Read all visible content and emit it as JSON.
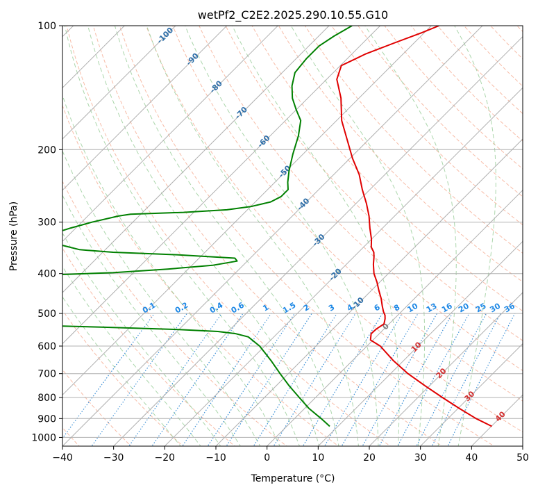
{
  "chart_data": {
    "type": "line",
    "subtype": "skew-t log-p diagram",
    "title": "wetPf2_C2E2.2025.290.10.55.G10",
    "xlabel": "Temperature (°C)",
    "ylabel": "Pressure (hPa)",
    "xlim": [
      -40,
      50
    ],
    "ylim": [
      1050,
      100
    ],
    "x_ticks": [
      -40,
      -30,
      -20,
      -10,
      0,
      10,
      20,
      30,
      40,
      50
    ],
    "y_ticks": [
      100,
      200,
      300,
      400,
      500,
      600,
      700,
      800,
      900,
      1000
    ],
    "x_tick_labels": [
      "−40",
      "−30",
      "−20",
      "−10",
      "0",
      "10",
      "20",
      "30",
      "40",
      "50"
    ],
    "y_tick_labels": [
      "100",
      "200",
      "300",
      "400",
      "500",
      "600",
      "700",
      "800",
      "900",
      "1000"
    ],
    "isotherm_labels": [
      {
        "t": -100,
        "text": "-100"
      },
      {
        "t": -90,
        "text": "-90"
      },
      {
        "t": -80,
        "text": "-80"
      },
      {
        "t": -70,
        "text": "-70"
      },
      {
        "t": -60,
        "text": "-60"
      },
      {
        "t": -50,
        "text": "-50"
      },
      {
        "t": -40,
        "text": "-40"
      },
      {
        "t": -30,
        "text": "-30"
      },
      {
        "t": -20,
        "text": "-20"
      },
      {
        "t": -10,
        "text": "-10"
      }
    ],
    "mixing_ratio_labels": [
      "0.1",
      "0.2",
      "0.4",
      "0.6",
      "1",
      "1.5",
      "2",
      "3",
      "4",
      "6",
      "8",
      "10",
      "13",
      "16",
      "20",
      "25",
      "30",
      "36"
    ],
    "mixing_ratio_values": [
      0.1,
      0.2,
      0.4,
      0.6,
      1,
      1.5,
      2,
      3,
      4,
      6,
      8,
      10,
      13,
      16,
      20,
      25,
      30,
      36
    ],
    "red_labels": [
      {
        "t": 10,
        "text": "10"
      },
      {
        "t": 20,
        "text": "20"
      },
      {
        "t": 30,
        "text": "30"
      },
      {
        "t": 40,
        "text": "40"
      }
    ],
    "zero_label": {
      "t": 0,
      "text": "0"
    },
    "series": [
      {
        "name": "Temperature",
        "color": "#e00000",
        "points": [
          [
            940,
            40.1
          ],
          [
            900,
            35.5
          ],
          [
            850,
            30.2
          ],
          [
            800,
            24.8
          ],
          [
            750,
            19.2
          ],
          [
            700,
            13.4
          ],
          [
            650,
            7.9
          ],
          [
            600,
            2.6
          ],
          [
            580,
            -0.5
          ],
          [
            560,
            -1.6
          ],
          [
            545,
            -1.5
          ],
          [
            530,
            -1.0
          ],
          [
            515,
            -1.8
          ],
          [
            505,
            -2.5
          ],
          [
            495,
            -3.5
          ],
          [
            480,
            -4.8
          ],
          [
            460,
            -6.5
          ],
          [
            440,
            -8.5
          ],
          [
            420,
            -10.5
          ],
          [
            400,
            -12.8
          ],
          [
            380,
            -14.7
          ],
          [
            365,
            -16.0
          ],
          [
            355,
            -17.0
          ],
          [
            345,
            -18.5
          ],
          [
            330,
            -20.0
          ],
          [
            310,
            -22.5
          ],
          [
            290,
            -25.0
          ],
          [
            270,
            -28.0
          ],
          [
            250,
            -31.5
          ],
          [
            230,
            -35.0
          ],
          [
            210,
            -39.5
          ],
          [
            190,
            -44.0
          ],
          [
            170,
            -49.0
          ],
          [
            150,
            -53.5
          ],
          [
            135,
            -58.0
          ],
          [
            125,
            -59.8
          ],
          [
            117,
            -57.3
          ],
          [
            110,
            -53.8
          ],
          [
            104,
            -50.5
          ],
          [
            100,
            -48.5
          ]
        ]
      },
      {
        "name": "Dewpoint",
        "color": "#008000",
        "points": [
          [
            940,
            8.4
          ],
          [
            900,
            5.2
          ],
          [
            850,
            0.8
          ],
          [
            800,
            -3.2
          ],
          [
            750,
            -7.4
          ],
          [
            700,
            -11.6
          ],
          [
            650,
            -16.0
          ],
          [
            600,
            -21.0
          ],
          [
            570,
            -25.0
          ],
          [
            560,
            -28.0
          ],
          [
            553,
            -32.0
          ],
          [
            547,
            -40.0
          ],
          [
            540,
            -55.0
          ],
          [
            533,
            -72.0
          ],
          [
            528,
            -87.0
          ],
          [
            523,
            -98.0
          ],
          [
            519,
            -103.0
          ],
          [
            516,
            -106.0
          ],
          [
            512,
            -108.0
          ],
          [
            480,
            -95.0
          ],
          [
            440,
            -86.0
          ],
          [
            420,
            -82.0
          ],
          [
            404,
            -78.0
          ],
          [
            398,
            -64.0
          ],
          [
            390,
            -54.0
          ],
          [
            382,
            -46.0
          ],
          [
            373,
            -42.0
          ],
          [
            367,
            -43.0
          ],
          [
            360,
            -55.0
          ],
          [
            355,
            -68.0
          ],
          [
            350,
            -75.0
          ],
          [
            340,
            -80.0
          ],
          [
            333,
            -83.0
          ],
          [
            325,
            -84.0
          ],
          [
            318,
            -83.0
          ],
          [
            310,
            -81.0
          ],
          [
            300,
            -78.0
          ],
          [
            290,
            -74.0
          ],
          [
            287,
            -72.0
          ],
          [
            284,
            -62.0
          ],
          [
            280,
            -54.0
          ],
          [
            275,
            -50.0
          ],
          [
            268,
            -47.0
          ],
          [
            260,
            -46.0
          ],
          [
            250,
            -46.0
          ],
          [
            240,
            -47.5
          ],
          [
            225,
            -49.5
          ],
          [
            205,
            -52.0
          ],
          [
            185,
            -54.5
          ],
          [
            170,
            -57.0
          ],
          [
            160,
            -60.0
          ],
          [
            150,
            -63.0
          ],
          [
            140,
            -65.5
          ],
          [
            130,
            -67.5
          ],
          [
            120,
            -68.0
          ],
          [
            112,
            -68.0
          ],
          [
            106,
            -67.0
          ],
          [
            100,
            -65.5
          ]
        ]
      }
    ],
    "grid": true,
    "background_lines": [
      "isotherms",
      "dry adiabats",
      "moist adiabats",
      "mixing ratio lines"
    ],
    "colors": {
      "isotherm": "#b0b0b0",
      "dry_adiabat": "#f4a58a",
      "moist_adiabat": "#96cc96",
      "mixing_ratio": "#3b8fd6",
      "label_blue": "#2e6ea8",
      "label_mixing": "#1e88e5",
      "label_red": "#d32f2f",
      "label_gray": "#808080",
      "frame": "#000000"
    }
  }
}
